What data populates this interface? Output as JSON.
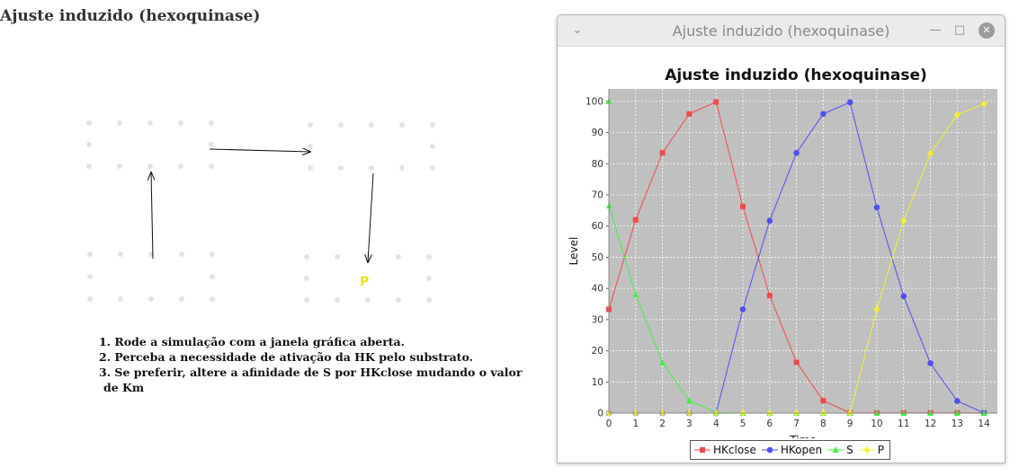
{
  "page": {
    "title": "Ajuste induzido (hexoquinase)"
  },
  "diagram": {
    "product_label": "P",
    "product_color": "#f2e01b"
  },
  "instructions": [
    {
      "num": "1.",
      "text": "Rode a simulação com a janela gráfica aberta."
    },
    {
      "num": "2.",
      "text": "Perceba a necessidade de ativação da HK pelo substrato."
    },
    {
      "num": "3.",
      "text": "Se preferir, altere a afinidade de S por HKclose mudando o valor",
      "cont": "de Km"
    }
  ],
  "window": {
    "title": "Ajuste induzido (hexoquinase)",
    "icons": {
      "menu": "chevron-down-icon",
      "minimize": "minimize-icon",
      "maximize": "maximize-icon",
      "close": "close-icon"
    }
  },
  "chart_data": {
    "type": "line",
    "title": "Ajuste induzido (hexoquinase)",
    "xlabel": "Time",
    "ylabel": "Level",
    "xlim": [
      0,
      14.5
    ],
    "ylim": [
      0,
      104
    ],
    "xticks": [
      0,
      1,
      2,
      3,
      4,
      5,
      6,
      7,
      8,
      9,
      10,
      11,
      12,
      13,
      14
    ],
    "yticks": [
      0,
      10,
      20,
      30,
      40,
      50,
      60,
      70,
      80,
      90,
      100
    ],
    "grid": true,
    "legend_position": "bottom",
    "x": [
      0,
      1,
      2,
      3,
      4,
      5,
      6,
      7,
      8,
      9,
      10,
      11,
      12,
      13,
      14
    ],
    "series": [
      {
        "name": "HKclose",
        "color": "#f24a4a",
        "marker": "square",
        "values": [
          33.3,
          62,
          83.5,
          96,
          99.8,
          66.3,
          37.7,
          16.3,
          4,
          0.1,
          0.1,
          0.1,
          0.1,
          0.1,
          0.1
        ]
      },
      {
        "name": "HKopen",
        "color": "#5050f0",
        "marker": "circle",
        "values": [
          0,
          0,
          0,
          0,
          0,
          33.3,
          61.7,
          83.5,
          96,
          99.7,
          66,
          37.5,
          16,
          3.9,
          0.1
        ]
      },
      {
        "name": "S",
        "color": "#44ee44",
        "marker": "triangle",
        "values": [
          100,
          66.5,
          38,
          16.2,
          4,
          0,
          0,
          0,
          0,
          0,
          0,
          0,
          0,
          0,
          0
        ],
        "note_points": [
          [
            0,
            100
          ],
          [
            0.01,
            66.5
          ],
          [
            1,
            38
          ],
          [
            2,
            16.2
          ],
          [
            3,
            4
          ],
          [
            4,
            0.2
          ],
          [
            5,
            0
          ],
          [
            6,
            0
          ],
          [
            7,
            0
          ],
          [
            8,
            0
          ],
          [
            9,
            0
          ],
          [
            10,
            0
          ],
          [
            11,
            0
          ],
          [
            12,
            0
          ],
          [
            13,
            0
          ],
          [
            14,
            0
          ]
        ]
      },
      {
        "name": "P",
        "color": "#f5f030",
        "marker": "diamond",
        "values": [
          0,
          0,
          0,
          0,
          0,
          0,
          0,
          0,
          0,
          0,
          33.3,
          61.7,
          83.3,
          95.7,
          99.2
        ]
      }
    ]
  }
}
